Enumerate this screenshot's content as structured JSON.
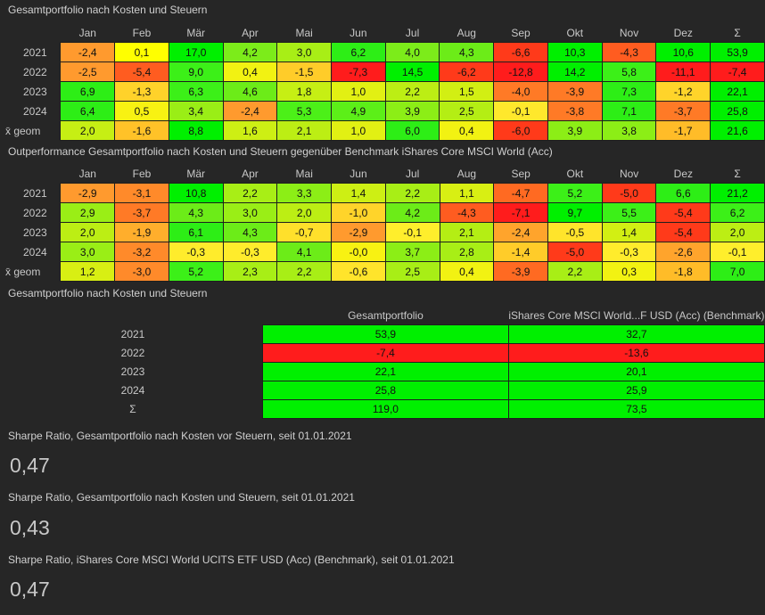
{
  "months": [
    "Jan",
    "Feb",
    "Mär",
    "Apr",
    "Mai",
    "Jun",
    "Jul",
    "Aug",
    "Sep",
    "Okt",
    "Nov",
    "Dez",
    "Σ"
  ],
  "table1": {
    "title": "Gesamtportfolio nach Kosten und Steuern",
    "rows": [
      {
        "label": "2021",
        "values": [
          "-2,4",
          "0,1",
          "17,0",
          "4,2",
          "3,0",
          "6,2",
          "4,0",
          "4,3",
          "-6,6",
          "10,3",
          "-4,3",
          "10,6",
          "53,9"
        ],
        "colors": [
          "#ff9a2e",
          "#ffff00",
          "#00f000",
          "#7cec1a",
          "#a8ee16",
          "#2dee16",
          "#7cec1a",
          "#6cec18",
          "#ff3a1a",
          "#00f000",
          "#ff5c20",
          "#00f000",
          "#00f000"
        ]
      },
      {
        "label": "2022",
        "values": [
          "-2,5",
          "-5,4",
          "9,0",
          "0,4",
          "-1,5",
          "-7,3",
          "14,5",
          "-6,2",
          "-12,8",
          "14,2",
          "5,8",
          "-11,1",
          "-7,4"
        ],
        "colors": [
          "#ff9a2e",
          "#ff5c20",
          "#3cf018",
          "#f2f212",
          "#ffcc29",
          "#ff1c1c",
          "#00f000",
          "#ff3a1a",
          "#ff1c1c",
          "#00f000",
          "#3cf018",
          "#ff1c1c",
          "#ff1c1c"
        ]
      },
      {
        "label": "2023",
        "values": [
          "6,9",
          "-1,3",
          "6,3",
          "4,6",
          "1,8",
          "1,0",
          "2,2",
          "1,5",
          "-4,0",
          "-3,9",
          "7,3",
          "-1,2",
          "22,1"
        ],
        "colors": [
          "#2dee16",
          "#ffd22a",
          "#3cf018",
          "#6cec18",
          "#c6ef14",
          "#e2f013",
          "#bcee14",
          "#d2ef13",
          "#ff7a26",
          "#ff7a26",
          "#2dee16",
          "#ffd42a",
          "#00f000"
        ]
      },
      {
        "label": "2024",
        "values": [
          "6,4",
          "0,5",
          "3,4",
          "-2,4",
          "5,3",
          "4,9",
          "3,9",
          "2,5",
          "-0,1",
          "-3,8",
          "7,1",
          "-3,7",
          "25,8"
        ],
        "colors": [
          "#2dee16",
          "#f8f212",
          "#9aee16",
          "#ff9a2e",
          "#4cf018",
          "#5cef18",
          "#8cee16",
          "#b4ee14",
          "#ffe82c",
          "#ff7a26",
          "#2dee16",
          "#ff7a26",
          "#00f000"
        ]
      },
      {
        "label": "x̄ geom",
        "values": [
          "2,0",
          "-1,6",
          "8,8",
          "1,6",
          "2,1",
          "1,0",
          "6,0",
          "0,4",
          "-6,0",
          "3,9",
          "3,8",
          "-1,7",
          "21,6"
        ],
        "colors": [
          "#c6ef14",
          "#ffc228",
          "#00f000",
          "#cdef14",
          "#bcee14",
          "#e2f013",
          "#2dee16",
          "#f2f212",
          "#ff3a1a",
          "#8cee16",
          "#8cee16",
          "#ffbc28",
          "#00f000"
        ]
      }
    ]
  },
  "table2": {
    "title": "Outperformance Gesamtportfolio nach Kosten und Steuern gegenüber Benchmark iShares Core MSCI World (Acc)",
    "rows": [
      {
        "label": "2021",
        "values": [
          "-2,9",
          "-3,1",
          "10,8",
          "2,2",
          "3,3",
          "1,4",
          "2,2",
          "1,1",
          "-4,7",
          "5,2",
          "-5,0",
          "6,6",
          "21,2"
        ],
        "colors": [
          "#ff9a2e",
          "#ff8a2a",
          "#00f000",
          "#a8ee16",
          "#8cee16",
          "#cdef14",
          "#a8ee16",
          "#d8ef13",
          "#ff6a22",
          "#3cf018",
          "#ff3a1a",
          "#2dee16",
          "#00f000"
        ]
      },
      {
        "label": "2022",
        "values": [
          "2,9",
          "-3,7",
          "4,3",
          "3,0",
          "2,0",
          "-1,0",
          "4,2",
          "-4,3",
          "-7,1",
          "9,7",
          "5,5",
          "-5,4",
          "6,2"
        ],
        "colors": [
          "#9aee16",
          "#ff7a26",
          "#6cec18",
          "#9aee16",
          "#bcee14",
          "#ffd42a",
          "#6cec18",
          "#ff5c20",
          "#ff1c1c",
          "#00f000",
          "#3cf018",
          "#ff3a1a",
          "#3cf018"
        ]
      },
      {
        "label": "2023",
        "values": [
          "2,0",
          "-1,9",
          "6,1",
          "4,3",
          "-0,7",
          "-2,9",
          "-0,1",
          "2,1",
          "-2,4",
          "-0,5",
          "1,4",
          "-5,4",
          "2,0"
        ],
        "colors": [
          "#bcee14",
          "#ffae2c",
          "#2dee16",
          "#6cec18",
          "#ffe02b",
          "#ff9a2e",
          "#ffee2c",
          "#b4ee14",
          "#ffa42c",
          "#ffe42b",
          "#d2ef13",
          "#ff3a1a",
          "#bcee14"
        ]
      },
      {
        "label": "2024",
        "values": [
          "3,0",
          "-3,2",
          "-0,3",
          "-0,3",
          "4,1",
          "-0,0",
          "3,7",
          "2,8",
          "-1,4",
          "-5,0",
          "-0,3",
          "-2,6",
          "-0,1"
        ],
        "colors": [
          "#9aee16",
          "#ff8a2a",
          "#ffec2c",
          "#ffec2c",
          "#6cec18",
          "#f8f212",
          "#8cee16",
          "#a8ee16",
          "#ffcc29",
          "#ff3a1a",
          "#ffec2c",
          "#ffa42c",
          "#ffee2c"
        ]
      },
      {
        "label": "x̄ geom",
        "values": [
          "1,2",
          "-3,0",
          "5,2",
          "2,3",
          "2,2",
          "-0,6",
          "2,5",
          "0,4",
          "-3,9",
          "2,2",
          "0,3",
          "-1,8",
          "7,0"
        ],
        "colors": [
          "#d8ef13",
          "#ff8a2a",
          "#3cf018",
          "#a8ee16",
          "#a8ee16",
          "#ffe42b",
          "#a8ee16",
          "#f2f212",
          "#ff6a22",
          "#a8ee16",
          "#f2f212",
          "#ffbc28",
          "#2dee16"
        ]
      }
    ]
  },
  "table3": {
    "title": "Gesamtportfolio nach Kosten und Steuern",
    "col1": "Gesamtportfolio",
    "col2": "iShares Core MSCI World...F USD (Acc) (Benchmark)",
    "rows": [
      {
        "label": "2021",
        "v1": "53,9",
        "v2": "32,7",
        "c1": "#00f000",
        "c2": "#00f000"
      },
      {
        "label": "2022",
        "v1": "-7,4",
        "v2": "-13,6",
        "c1": "#ff1c1c",
        "c2": "#ff1c1c"
      },
      {
        "label": "2023",
        "v1": "22,1",
        "v2": "20,1",
        "c1": "#00f000",
        "c2": "#00f000"
      },
      {
        "label": "2024",
        "v1": "25,8",
        "v2": "25,9",
        "c1": "#00f000",
        "c2": "#00f000"
      },
      {
        "label": "Σ",
        "v1": "119,0",
        "v2": "73,5",
        "c1": "#00f000",
        "c2": "#00f000"
      }
    ]
  },
  "sharpe": [
    {
      "label": "Sharpe Ratio, Gesamtportfolio nach Kosten vor Steuern, seit 01.01.2021",
      "value": "0,47"
    },
    {
      "label": "Sharpe Ratio, Gesamtportfolio nach Kosten und Steuern, seit 01.01.2021",
      "value": "0,43"
    },
    {
      "label": "Sharpe Ratio, iShares Core MSCI World UCITS ETF USD (Acc) (Benchmark), seit 01.01.2021",
      "value": "0,47"
    }
  ]
}
